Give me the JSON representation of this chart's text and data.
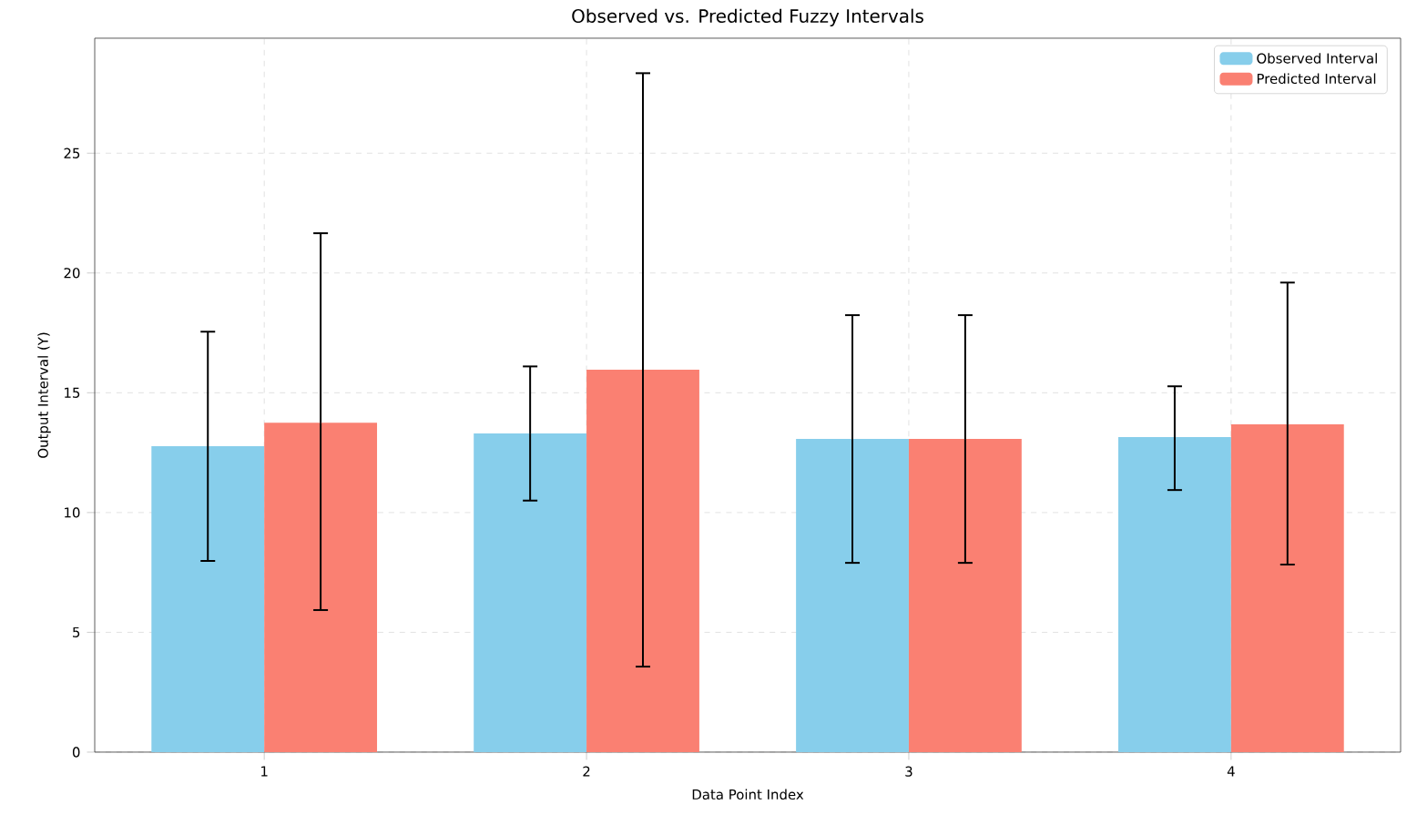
{
  "chart_data": {
    "type": "bar",
    "title": "Observed vs. Predicted Fuzzy Intervals",
    "xlabel": "Data Point Index",
    "ylabel": "Output Interval (Y)",
    "categories": [
      "1",
      "2",
      "3",
      "4"
    ],
    "series": [
      {
        "name": "Observed Interval",
        "color": "#87ceeb",
        "values": [
          12.77,
          13.3,
          13.07,
          13.15
        ],
        "errors": [
          [
            7.98,
            17.55
          ],
          [
            10.5,
            16.1
          ],
          [
            7.9,
            18.24
          ],
          [
            10.94,
            15.27
          ]
        ]
      },
      {
        "name": "Predicted Interval",
        "color": "#fa8072",
        "values": [
          13.75,
          15.96,
          13.07,
          13.68
        ],
        "errors": [
          [
            5.93,
            21.66
          ],
          [
            3.57,
            28.34
          ],
          [
            7.9,
            18.24
          ],
          [
            7.83,
            19.6
          ]
        ]
      }
    ],
    "ylim": [
      0,
      29.8
    ],
    "yticks": [
      0,
      5,
      10,
      15,
      20,
      25
    ],
    "grid": true,
    "legend": "top right"
  }
}
